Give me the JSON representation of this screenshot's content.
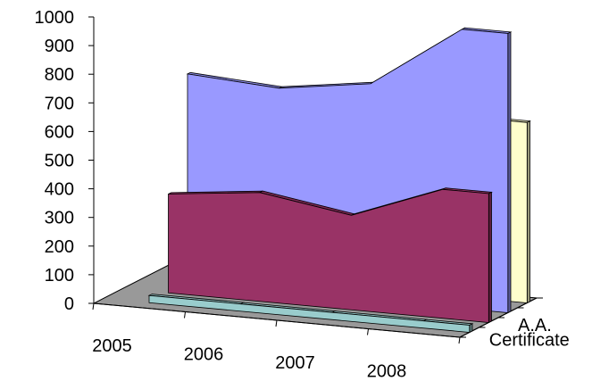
{
  "chart_data": {
    "type": "area",
    "three_d": true,
    "title": "",
    "xlabel": "",
    "ylabel": "",
    "categories": [
      "2005",
      "2006",
      "2007",
      "2008"
    ],
    "ylim": [
      0,
      1000
    ],
    "yticks": [
      0,
      100,
      200,
      300,
      400,
      500,
      600,
      700,
      800,
      900,
      1000
    ],
    "depth_labels": [
      "Certificate",
      "A.A."
    ],
    "series": [
      {
        "values": [
          25,
          25,
          25,
          25
        ],
        "color": "#99CCCC"
      },
      {
        "values": [
          345,
          380,
          330,
          450
        ],
        "color": "#993366"
      },
      {
        "values": [
          730,
          710,
          755,
          975
        ],
        "color": "#9999FF"
      },
      {
        "values": [
          630,
          630,
          630,
          630
        ],
        "color": "#FFFFCC"
      }
    ],
    "grid": false,
    "legend": "none"
  }
}
